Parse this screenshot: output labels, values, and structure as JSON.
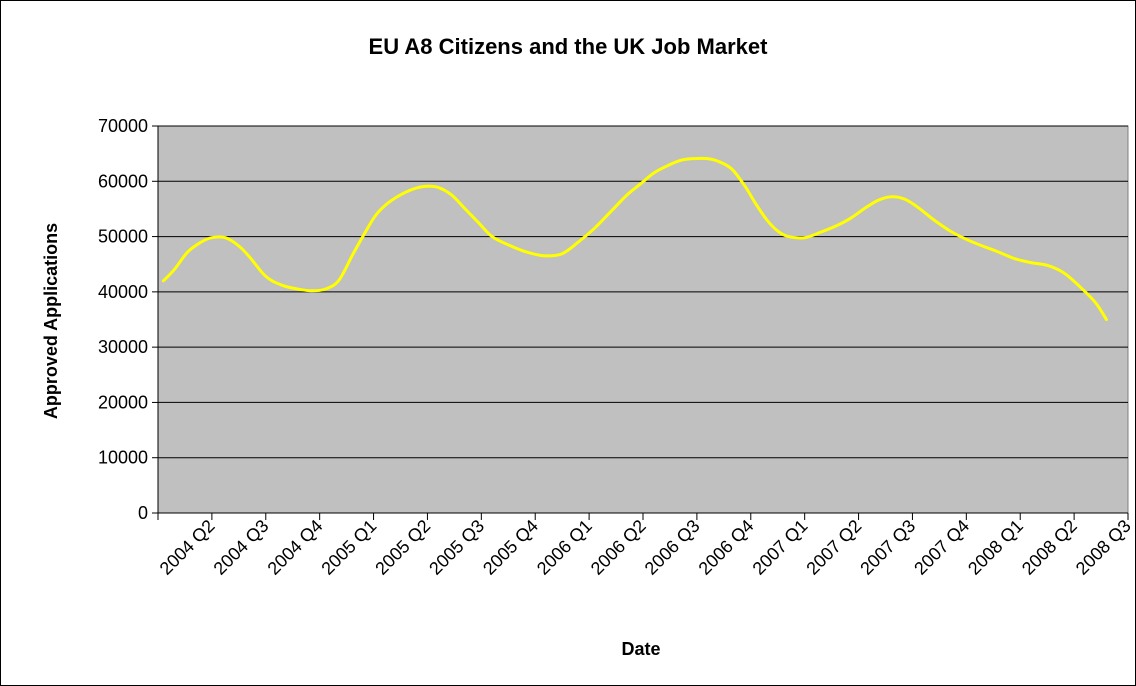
{
  "chart_data": {
    "type": "line",
    "title": "EU A8 Citizens and the UK Job Market",
    "xlabel": "Date",
    "ylabel": "Approved Applications",
    "ylim": [
      0,
      70000
    ],
    "yticks": [
      0,
      10000,
      20000,
      30000,
      40000,
      50000,
      60000,
      70000
    ],
    "categories": [
      "2004 Q2",
      "2004 Q3",
      "2004 Q4",
      "2005 Q1",
      "2005 Q2",
      "2005 Q3",
      "2005 Q4",
      "2006 Q1",
      "2006 Q2",
      "2006 Q3",
      "2006 Q4",
      "2007 Q1",
      "2007 Q2",
      "2007 Q3",
      "2007 Q4",
      "2008 Q1",
      "2008 Q2",
      "2008 Q3"
    ],
    "series": [
      {
        "color": "#ffff00",
        "x": [
          0.1,
          0.3,
          0.55,
          0.8,
          1.0,
          1.25,
          1.5,
          1.7,
          2.0,
          2.3,
          2.6,
          2.85,
          3.1,
          3.35,
          3.6,
          3.8,
          4.05,
          4.3,
          4.55,
          4.8,
          5.0,
          5.2,
          5.45,
          5.7,
          5.95,
          6.2,
          6.5,
          6.75,
          7.0,
          7.2,
          7.5,
          7.8,
          8.1,
          8.4,
          8.7,
          8.95,
          9.2,
          9.45,
          9.7,
          9.95,
          10.2,
          10.4,
          10.65,
          10.9,
          11.1,
          11.3,
          11.5,
          11.7,
          12.0,
          12.3,
          12.6,
          12.85,
          13.1,
          13.35,
          13.6,
          13.85,
          14.1,
          14.4,
          14.7,
          15.0,
          15.3,
          15.6,
          15.9,
          16.2,
          16.5,
          16.8,
          17.1,
          17.4,
          17.6
        ],
        "y": [
          42000,
          44000,
          47200,
          49000,
          49800,
          49800,
          48300,
          46300,
          42800,
          41200,
          40500,
          40200,
          40500,
          42000,
          46500,
          50000,
          54000,
          56300,
          57800,
          58800,
          59100,
          58900,
          57500,
          55000,
          52500,
          50000,
          48500,
          47500,
          46800,
          46500,
          46900,
          49000,
          51500,
          54500,
          57500,
          59500,
          61500,
          62800,
          63800,
          64100,
          64100,
          63600,
          62200,
          59000,
          55800,
          53000,
          51000,
          50000,
          49800,
          50800,
          52000,
          53300,
          55000,
          56500,
          57200,
          56800,
          55300,
          53000,
          51000,
          49500,
          48300,
          47200,
          46000,
          45300,
          44800,
          43500,
          41000,
          38000,
          35000
        ]
      }
    ]
  }
}
